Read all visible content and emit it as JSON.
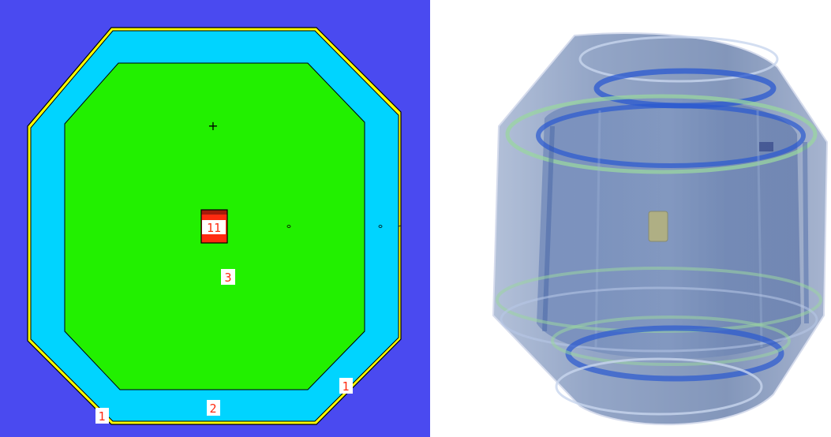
{
  "left_view": {
    "background_color": "#4a4af0",
    "outer_shell_color": "#ffff00",
    "annulus_color": "#00d4ff",
    "core_color": "#22f000",
    "source_color": "#ff2a10",
    "label_color": "#ff2a10",
    "labels": {
      "source": "11",
      "core": "3",
      "annulus": "2",
      "shell_left": "1",
      "shell_right": "1"
    },
    "origin_marker": "+"
  },
  "right_view": {
    "vessel_color": "#6a82b0",
    "band_blue": "#2a58d0",
    "band_green": "#9ad6a0",
    "insert_color": "#b8b47a"
  }
}
